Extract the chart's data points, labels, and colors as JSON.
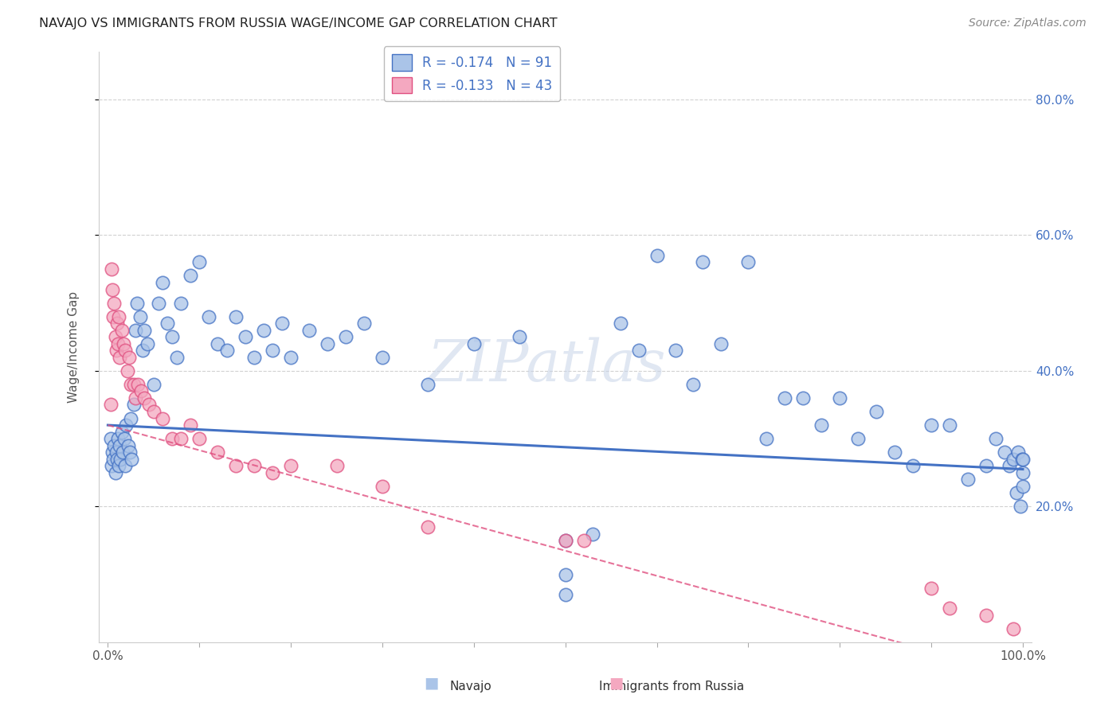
{
  "title": "NAVAJO VS IMMIGRANTS FROM RUSSIA WAGE/INCOME GAP CORRELATION CHART",
  "source": "Source: ZipAtlas.com",
  "ylabel": "Wage/Income Gap",
  "ytick_labels": [
    "20.0%",
    "40.0%",
    "60.0%",
    "80.0%"
  ],
  "ytick_values": [
    0.2,
    0.4,
    0.6,
    0.8
  ],
  "watermark": "ZIPatlas",
  "navajo_R": "-0.174",
  "navajo_N": "91",
  "russia_R": "-0.133",
  "russia_N": "43",
  "navajo_color": "#aac4e8",
  "russia_color": "#f4a8c0",
  "navajo_line_color": "#4472c4",
  "russia_line_color": "#e05080",
  "xlim": [
    0.0,
    1.0
  ],
  "ylim": [
    0.0,
    0.87
  ],
  "navajo_x": [
    0.003,
    0.004,
    0.005,
    0.006,
    0.007,
    0.008,
    0.009,
    0.01,
    0.011,
    0.012,
    0.013,
    0.014,
    0.015,
    0.016,
    0.018,
    0.019,
    0.02,
    0.022,
    0.024,
    0.025,
    0.026,
    0.028,
    0.03,
    0.032,
    0.035,
    0.038,
    0.04,
    0.043,
    0.05,
    0.055,
    0.06,
    0.065,
    0.07,
    0.075,
    0.08,
    0.09,
    0.1,
    0.11,
    0.12,
    0.13,
    0.14,
    0.15,
    0.16,
    0.17,
    0.18,
    0.19,
    0.2,
    0.22,
    0.24,
    0.26,
    0.28,
    0.3,
    0.35,
    0.4,
    0.45,
    0.5,
    0.53,
    0.56,
    0.58,
    0.6,
    0.62,
    0.64,
    0.65,
    0.67,
    0.7,
    0.72,
    0.74,
    0.76,
    0.78,
    0.8,
    0.82,
    0.84,
    0.86,
    0.88,
    0.9,
    0.92,
    0.94,
    0.96,
    0.97,
    0.98,
    0.985,
    0.99,
    0.993,
    0.995,
    0.997,
    0.999,
    1.0,
    1.0,
    1.0,
    0.5,
    0.5
  ],
  "navajo_y": [
    0.3,
    0.26,
    0.28,
    0.27,
    0.29,
    0.25,
    0.28,
    0.27,
    0.3,
    0.26,
    0.29,
    0.27,
    0.31,
    0.28,
    0.3,
    0.26,
    0.32,
    0.29,
    0.28,
    0.33,
    0.27,
    0.35,
    0.46,
    0.5,
    0.48,
    0.43,
    0.46,
    0.44,
    0.38,
    0.5,
    0.53,
    0.47,
    0.45,
    0.42,
    0.5,
    0.54,
    0.56,
    0.48,
    0.44,
    0.43,
    0.48,
    0.45,
    0.42,
    0.46,
    0.43,
    0.47,
    0.42,
    0.46,
    0.44,
    0.45,
    0.47,
    0.42,
    0.38,
    0.44,
    0.45,
    0.15,
    0.16,
    0.47,
    0.43,
    0.57,
    0.43,
    0.38,
    0.56,
    0.44,
    0.56,
    0.3,
    0.36,
    0.36,
    0.32,
    0.36,
    0.3,
    0.34,
    0.28,
    0.26,
    0.32,
    0.32,
    0.24,
    0.26,
    0.3,
    0.28,
    0.26,
    0.27,
    0.22,
    0.28,
    0.2,
    0.27,
    0.27,
    0.25,
    0.23,
    0.07,
    0.1
  ],
  "russia_x": [
    0.003,
    0.004,
    0.005,
    0.006,
    0.007,
    0.008,
    0.009,
    0.01,
    0.011,
    0.012,
    0.013,
    0.015,
    0.017,
    0.019,
    0.021,
    0.023,
    0.025,
    0.028,
    0.03,
    0.033,
    0.036,
    0.04,
    0.045,
    0.05,
    0.06,
    0.07,
    0.08,
    0.09,
    0.1,
    0.12,
    0.14,
    0.16,
    0.18,
    0.2,
    0.25,
    0.3,
    0.35,
    0.5,
    0.52,
    0.9,
    0.92,
    0.96,
    0.99
  ],
  "russia_y": [
    0.35,
    0.55,
    0.52,
    0.48,
    0.5,
    0.45,
    0.43,
    0.47,
    0.44,
    0.48,
    0.42,
    0.46,
    0.44,
    0.43,
    0.4,
    0.42,
    0.38,
    0.38,
    0.36,
    0.38,
    0.37,
    0.36,
    0.35,
    0.34,
    0.33,
    0.3,
    0.3,
    0.32,
    0.3,
    0.28,
    0.26,
    0.26,
    0.25,
    0.26,
    0.26,
    0.23,
    0.17,
    0.15,
    0.15,
    0.08,
    0.05,
    0.04,
    0.02
  ]
}
